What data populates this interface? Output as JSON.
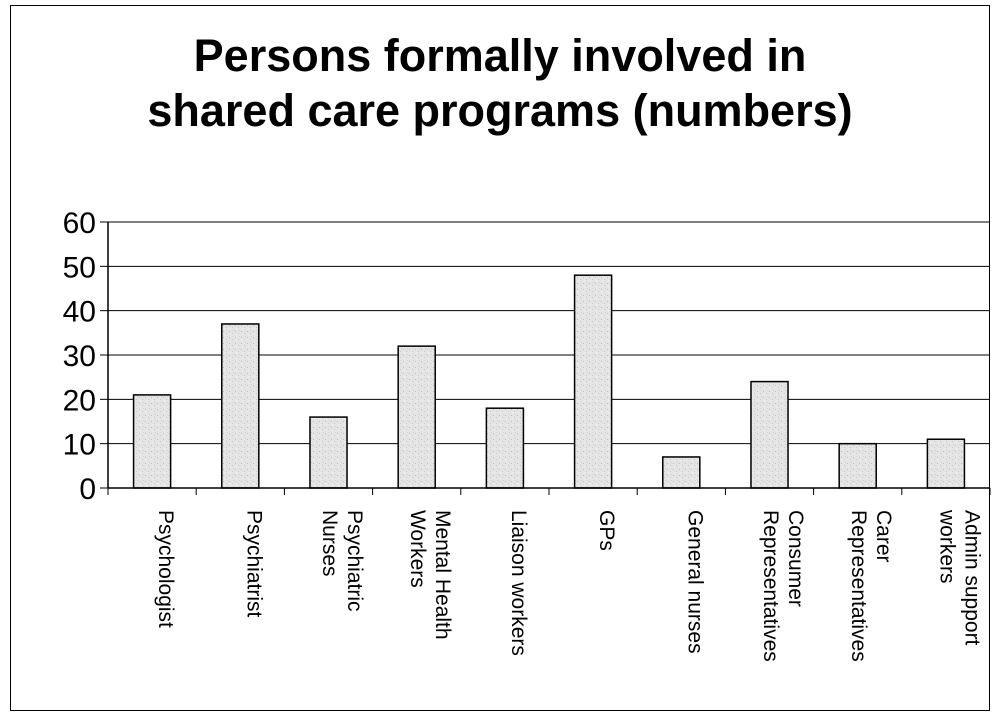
{
  "chart_data": {
    "type": "bar",
    "title": "Persons formally involved in\nshared care programs (numbers)",
    "xlabel": "",
    "ylabel": "",
    "ylim": [
      0,
      60
    ],
    "yticks": [
      0,
      10,
      20,
      30,
      40,
      50,
      60
    ],
    "grid": true,
    "legend": "none",
    "categories": [
      [
        "Psychologist"
      ],
      [
        "Psychiatrist"
      ],
      [
        "Psychiatric",
        "Nurses"
      ],
      [
        "Mental Health",
        "Workers"
      ],
      [
        "Liaison workers"
      ],
      [
        "GPs"
      ],
      [
        "General nurses"
      ],
      [
        "Consumer",
        "Representatives"
      ],
      [
        "Carer",
        "Representatives"
      ],
      [
        "Admin support",
        "workers"
      ]
    ],
    "values": [
      21,
      37,
      16,
      32,
      18,
      48,
      7,
      24,
      10,
      11
    ],
    "colors": {
      "bar_fill": "#e2e2e2",
      "bar_stroke": "#000000",
      "grid": "#000000"
    }
  }
}
